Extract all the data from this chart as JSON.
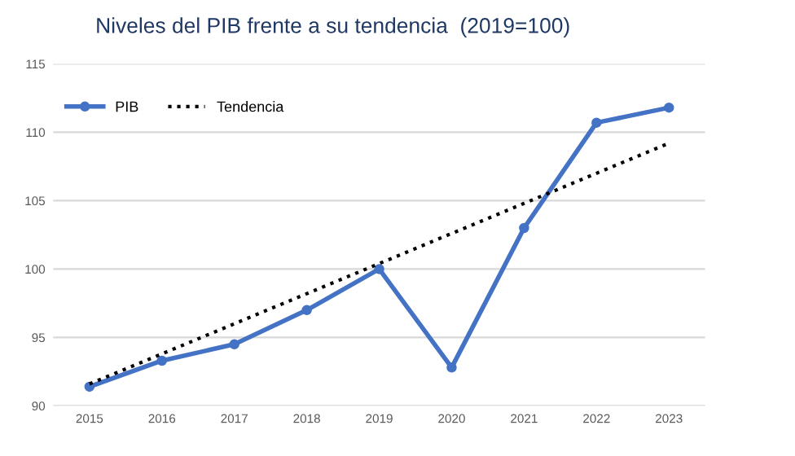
{
  "chart_data": {
    "type": "line",
    "title": "Niveles del PIB frente a su tendencia  (2019=100)",
    "categories": [
      "2015",
      "2016",
      "2017",
      "2018",
      "2019",
      "2020",
      "2021",
      "2022",
      "2023"
    ],
    "series": [
      {
        "name": "PIB",
        "color": "#4472c4",
        "marker": "circle",
        "line_style": "solid",
        "values": [
          91.4,
          93.3,
          94.5,
          97.0,
          100.0,
          92.8,
          103.0,
          110.7,
          111.8
        ]
      },
      {
        "name": "Tendencia",
        "color": "#000000",
        "marker": "none",
        "line_style": "dotted",
        "values": [
          91.6,
          93.8,
          96.0,
          98.2,
          100.4,
          102.6,
          104.8,
          107.0,
          109.2
        ]
      }
    ],
    "ylim": [
      90,
      115
    ],
    "yticks": [
      90,
      95,
      100,
      105,
      110,
      115
    ],
    "grid": "y",
    "legend": "top left"
  }
}
